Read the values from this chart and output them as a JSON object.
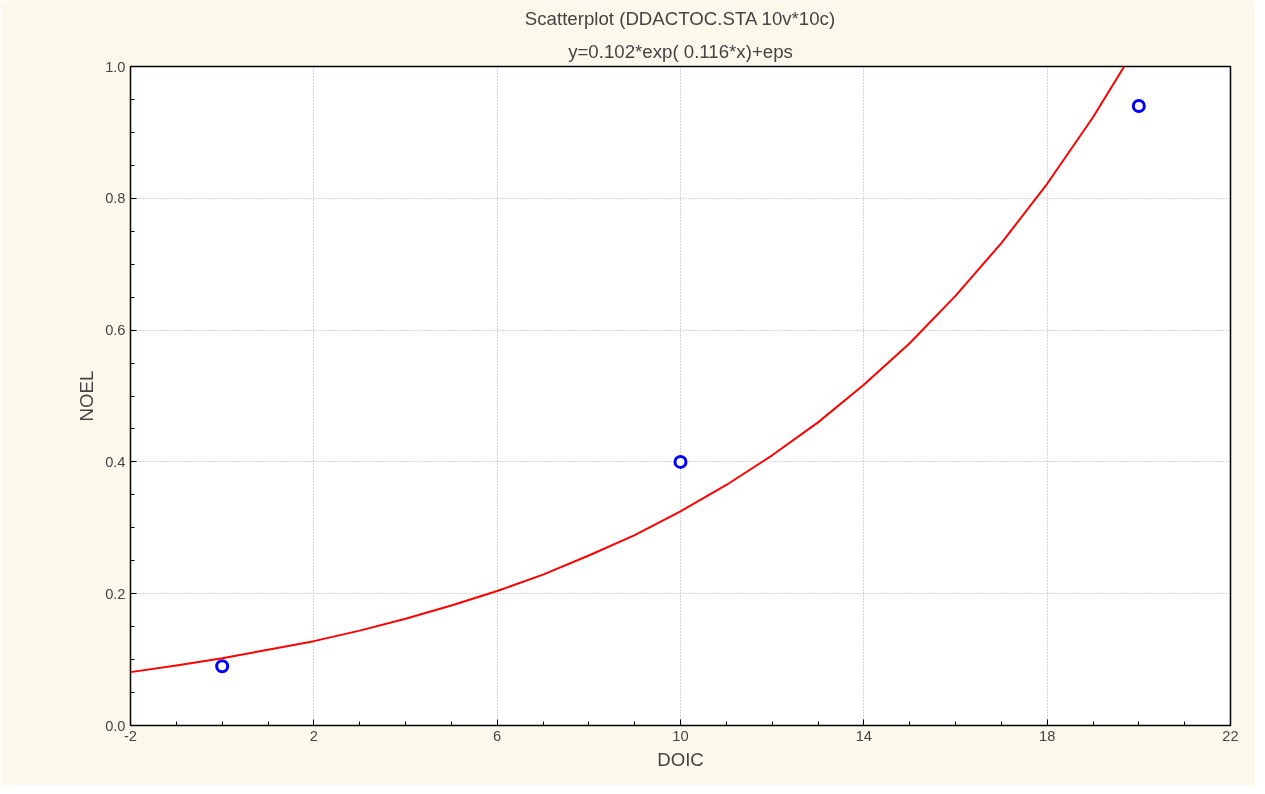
{
  "chart_data": {
    "type": "scatter",
    "title": "Scatterplot (DDACTOC.STA 10v*10c)",
    "subtitle": "y=0.102*exp( 0.116*x)+eps",
    "xlabel": "DOIC",
    "ylabel": "NOEL",
    "xlim": [
      -2,
      22
    ],
    "xticks": [
      -2,
      2,
      6,
      10,
      14,
      18,
      22
    ],
    "ylim": [
      0,
      1.0
    ],
    "yticks": [
      {
        "value": 0,
        "label": "0.0"
      },
      0.2,
      0.4,
      0.6,
      0.8,
      {
        "value": 1.0,
        "label": "1.0"
      }
    ],
    "grid": true,
    "series": [
      {
        "marker": "circle",
        "color": "#0000ff",
        "x": [
          0,
          10,
          20
        ],
        "values": [
          0.09,
          0.4,
          0.94
        ]
      },
      {
        "type": "line",
        "marker": "none",
        "color": "#ff0000",
        "line_style": "solid",
        "x": [
          -2,
          -1,
          0,
          1,
          2,
          3,
          4,
          5,
          6,
          7,
          8,
          9,
          10,
          11,
          12,
          13,
          14,
          15,
          16,
          17,
          18,
          19,
          19.68
        ],
        "values": [
          0.081,
          0.091,
          0.102,
          0.115,
          0.128,
          0.144,
          0.162,
          0.182,
          0.204,
          0.229,
          0.258,
          0.289,
          0.325,
          0.365,
          0.41,
          0.46,
          0.517,
          0.58,
          0.652,
          0.732,
          0.822,
          0.923,
          1.0
        ]
      }
    ]
  }
}
